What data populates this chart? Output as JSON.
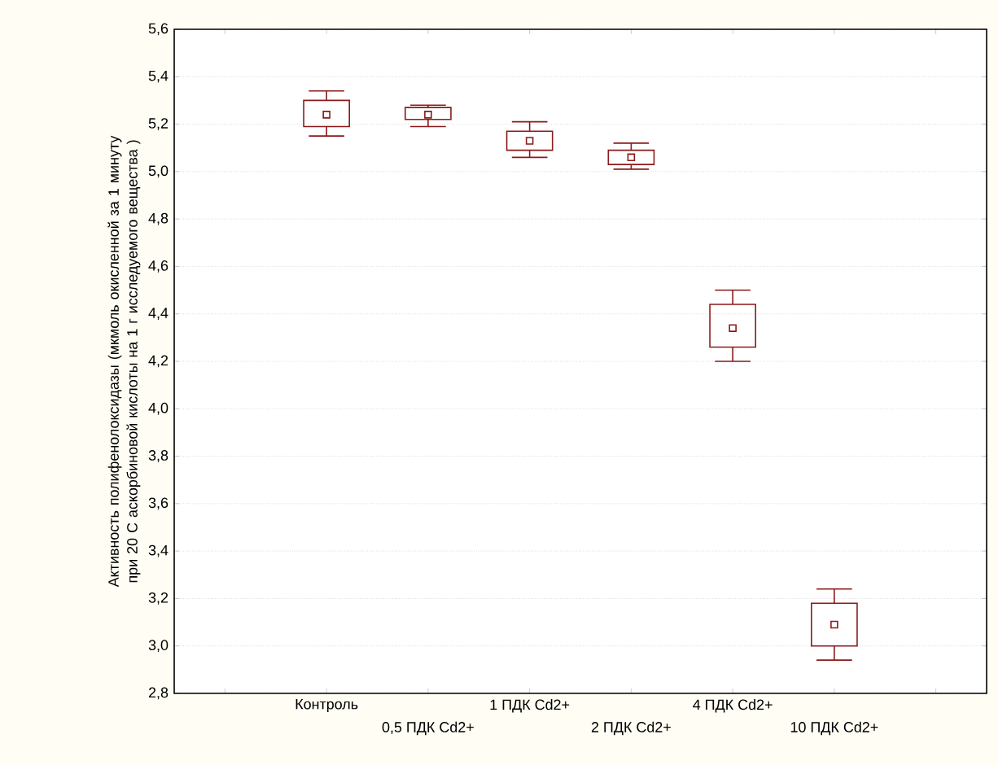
{
  "chart_data": {
    "type": "box",
    "ylabel": "Активность полифенолоксидазы (мкмоль окисленной за 1 минуту при 20 С аскорбиновой кислоты на 1 г исследуемого вещества )",
    "categories": [
      null,
      "Контроль",
      "0,5 ПДК Cd2+",
      "1 ПДК Cd2+",
      "2 ПДК Cd2+",
      "4 ПДК Cd2+",
      "10 ПДК Cd2+",
      null
    ],
    "boxes": [
      null,
      {
        "low": 5.15,
        "q1": 5.19,
        "q3": 5.3,
        "high": 5.34,
        "mean": 5.24
      },
      {
        "low": 5.19,
        "q1": 5.22,
        "q3": 5.27,
        "high": 5.28,
        "mean": 5.24
      },
      {
        "low": 5.06,
        "q1": 5.09,
        "q3": 5.17,
        "high": 5.21,
        "mean": 5.13
      },
      {
        "low": 5.01,
        "q1": 5.03,
        "q3": 5.09,
        "high": 5.12,
        "mean": 5.06
      },
      {
        "low": 4.2,
        "q1": 4.26,
        "q3": 4.44,
        "high": 4.5,
        "mean": 4.34
      },
      {
        "low": 2.94,
        "q1": 3.0,
        "q3": 3.18,
        "high": 3.24,
        "mean": 3.09
      },
      null
    ],
    "color": "#8b1a1a",
    "ylim": [
      2.8,
      5.6
    ],
    "yticks": [
      {
        "value": 2.8,
        "label": "2,8"
      },
      {
        "value": 3.0,
        "label": "3,0"
      },
      {
        "value": 3.2,
        "label": "3,2"
      },
      {
        "value": 3.4,
        "label": "3,4"
      },
      {
        "value": 3.6,
        "label": "3,6"
      },
      {
        "value": 3.8,
        "label": "3,8"
      },
      {
        "value": 4.0,
        "label": "4,0"
      },
      {
        "value": 4.2,
        "label": "4,2"
      },
      {
        "value": 4.4,
        "label": "4,4"
      },
      {
        "value": 4.6,
        "label": "4,6"
      },
      {
        "value": 4.8,
        "label": "4,8"
      },
      {
        "value": 5.0,
        "label": "5,0"
      },
      {
        "value": 5.2,
        "label": "5,2"
      },
      {
        "value": 5.4,
        "label": "5,4"
      },
      {
        "value": 5.6,
        "label": "5,6"
      }
    ],
    "grid": "y",
    "marker": "square"
  }
}
